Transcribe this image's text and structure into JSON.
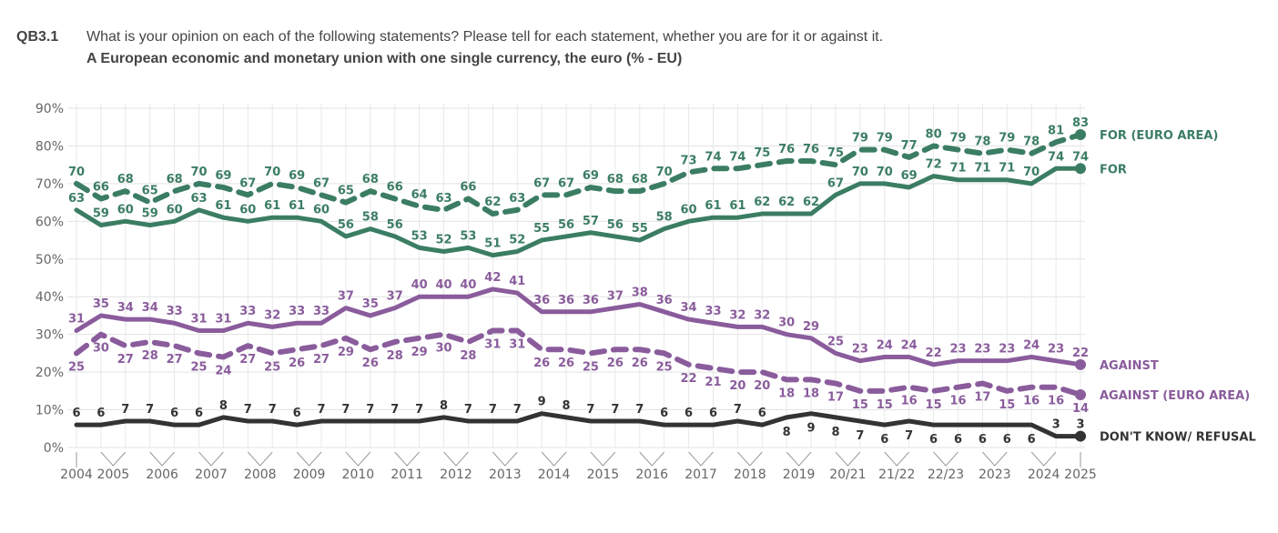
{
  "header": {
    "question_id": "QB3.1",
    "question": "What is your opinion on each of the following statements? Please tell for each statement, whether you are for it or against it.",
    "subtitle": "A European economic and monetary union with one single currency, the euro (% - EU)"
  },
  "chart_data": {
    "type": "line",
    "title": "A European economic and monetary union with one single currency, the euro (% - EU)",
    "ylim": [
      0,
      90
    ],
    "yticks": [
      "0%",
      "10%",
      "20%",
      "30%",
      "40%",
      "50%",
      "60%",
      "70%",
      "80%",
      "90%"
    ],
    "year_labels": [
      {
        "label": "2004",
        "at": 0
      },
      {
        "label": "2005",
        "at": 1.5
      },
      {
        "label": "2006",
        "at": 3.5
      },
      {
        "label": "2007",
        "at": 5.5
      },
      {
        "label": "2008",
        "at": 7.5
      },
      {
        "label": "2009",
        "at": 9.5
      },
      {
        "label": "2010",
        "at": 11.5
      },
      {
        "label": "2011",
        "at": 13.5
      },
      {
        "label": "2012",
        "at": 15.5
      },
      {
        "label": "2013",
        "at": 17.5
      },
      {
        "label": "2014",
        "at": 19.5
      },
      {
        "label": "2015",
        "at": 21.5
      },
      {
        "label": "2016",
        "at": 23.5
      },
      {
        "label": "2017",
        "at": 25.5
      },
      {
        "label": "2018",
        "at": 27.5
      },
      {
        "label": "2019",
        "at": 29.5
      },
      {
        "label": "20/21",
        "at": 31.5
      },
      {
        "label": "21/22",
        "at": 33.5
      },
      {
        "label": "22/23",
        "at": 35.5
      },
      {
        "label": "2023",
        "at": 37.5
      },
      {
        "label": "2024",
        "at": 39.5
      },
      {
        "label": "2025",
        "at": 41
      }
    ],
    "series": [
      {
        "name": "FOR (EURO AREA)",
        "color": "#3b7d63",
        "dashed": true,
        "label_pos": "above",
        "values": [
          70,
          66,
          68,
          65,
          68,
          70,
          69,
          67,
          70,
          69,
          67,
          65,
          68,
          66,
          64,
          63,
          66,
          62,
          63,
          67,
          67,
          69,
          68,
          68,
          70,
          73,
          74,
          74,
          75,
          76,
          76,
          75,
          79,
          79,
          77,
          80,
          79,
          78,
          79,
          78,
          81,
          83
        ]
      },
      {
        "name": "FOR",
        "color": "#3b7d63",
        "dashed": false,
        "label_pos": "above",
        "values": [
          63,
          59,
          60,
          59,
          60,
          63,
          61,
          60,
          61,
          61,
          60,
          56,
          58,
          56,
          53,
          52,
          53,
          51,
          52,
          55,
          56,
          57,
          56,
          55,
          58,
          60,
          61,
          61,
          62,
          62,
          62,
          67,
          70,
          70,
          69,
          72,
          71,
          71,
          71,
          70,
          74,
          74
        ]
      },
      {
        "name": "AGAINST",
        "color": "#8a5c9c",
        "dashed": false,
        "label_pos": "above",
        "values": [
          31,
          35,
          34,
          34,
          33,
          31,
          31,
          33,
          32,
          33,
          33,
          37,
          35,
          37,
          40,
          40,
          40,
          42,
          41,
          36,
          36,
          36,
          37,
          38,
          36,
          34,
          33,
          32,
          32,
          30,
          29,
          25,
          23,
          24,
          24,
          22,
          23,
          23,
          23,
          24,
          23,
          22
        ]
      },
      {
        "name": "AGAINST (EURO AREA)",
        "color": "#8a5c9c",
        "dashed": true,
        "label_pos": "below",
        "values": [
          25,
          30,
          27,
          28,
          27,
          25,
          24,
          27,
          25,
          26,
          27,
          29,
          26,
          28,
          29,
          30,
          28,
          31,
          31,
          26,
          26,
          25,
          26,
          26,
          25,
          22,
          21,
          20,
          20,
          18,
          18,
          17,
          15,
          15,
          16,
          15,
          16,
          17,
          15,
          16,
          16,
          14
        ]
      },
      {
        "name": "DON'T KNOW/ REFUSAL",
        "color": "#333333",
        "dashed": false,
        "label_pos": "above",
        "values": [
          6,
          6,
          7,
          7,
          6,
          6,
          8,
          7,
          7,
          6,
          7,
          7,
          7,
          7,
          7,
          8,
          7,
          7,
          7,
          9,
          8,
          7,
          7,
          7,
          6,
          6,
          6,
          7,
          6,
          8,
          9,
          8,
          7,
          6,
          7,
          6,
          6,
          6,
          6,
          6,
          3,
          3
        ]
      }
    ]
  }
}
